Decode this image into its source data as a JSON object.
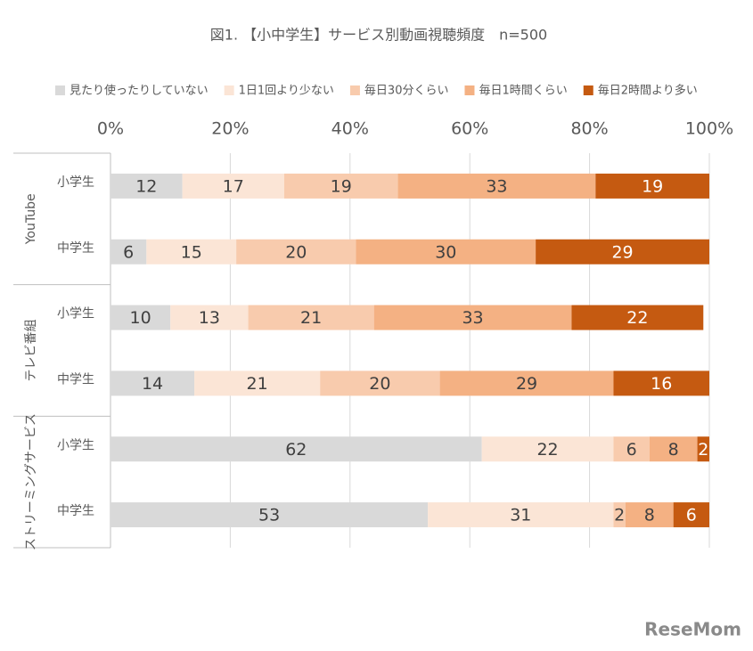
{
  "chart_data": {
    "type": "stacked-bar-horizontal",
    "title": "図1. 【小中学生】サービス別動画視聴頻度　n=500",
    "groups": [
      {
        "label": "YouTube",
        "categories": [
          "小学生",
          "中学生"
        ]
      },
      {
        "label": "テレビ番組",
        "categories": [
          "小学生",
          "中学生"
        ]
      },
      {
        "label": "ストリーミングサービス",
        "categories": [
          "小学生",
          "中学生"
        ]
      }
    ],
    "series": [
      {
        "name": "見たり使ったりしていない",
        "color": "#d9d9d9",
        "values": [
          12,
          6,
          10,
          14,
          62,
          53
        ]
      },
      {
        "name": "1日1回より少ない",
        "color": "#fbe5d6",
        "values": [
          17,
          15,
          13,
          21,
          22,
          31
        ]
      },
      {
        "name": "毎日30分くらい",
        "color": "#f8cbad",
        "values": [
          19,
          20,
          21,
          20,
          6,
          2
        ]
      },
      {
        "name": "毎日1時間くらい",
        "color": "#f4b183",
        "values": [
          33,
          30,
          33,
          29,
          8,
          8
        ]
      },
      {
        "name": "毎日2時間より多い",
        "color": "#c55a11",
        "values": [
          19,
          29,
          22,
          16,
          2,
          6
        ]
      }
    ],
    "xlim": [
      0,
      100
    ],
    "xticks": [
      {
        "value": 0,
        "label": "0%"
      },
      {
        "value": 20,
        "label": "20%"
      },
      {
        "value": 40,
        "label": "40%"
      },
      {
        "value": 60,
        "label": "60%"
      },
      {
        "value": 80,
        "label": "80%"
      },
      {
        "value": 100,
        "label": "100%"
      }
    ],
    "grid": true,
    "legend": "top",
    "watermark": "ReseMom"
  }
}
